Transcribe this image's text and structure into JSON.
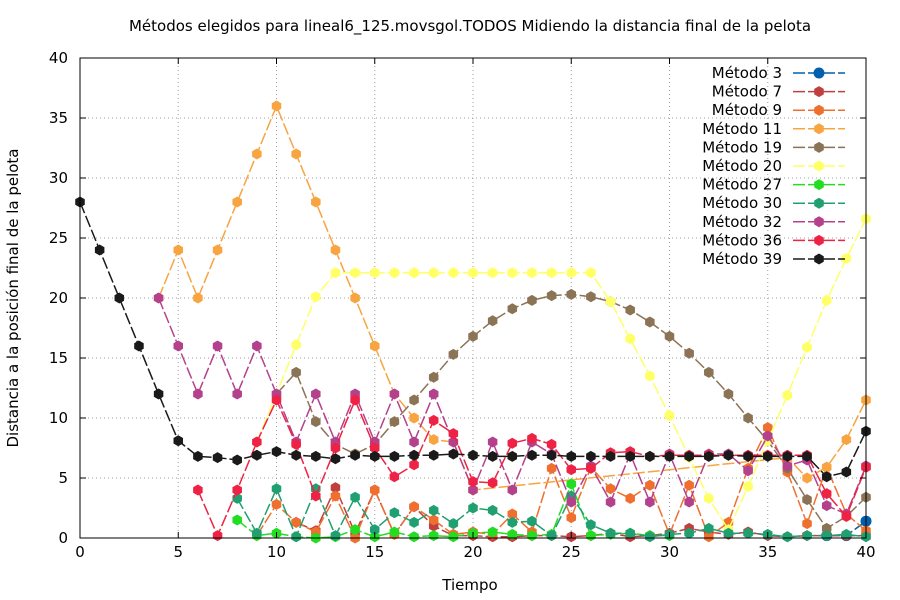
{
  "chart_data": {
    "type": "line",
    "title": "Métodos elegidos para lineal6_125.movsgol.TODOS Midiendo la distancia final de la pelota",
    "xlabel": "Tiempo",
    "ylabel": "Distancia a la posición final de la pelota",
    "xlim": [
      0,
      40
    ],
    "ylim": [
      0,
      40
    ],
    "xticks": [
      0,
      5,
      10,
      15,
      20,
      25,
      30,
      35,
      40
    ],
    "yticks": [
      0,
      5,
      10,
      15,
      20,
      25,
      30,
      35,
      40
    ],
    "grid": true,
    "legend_position": "top-right",
    "series": [
      {
        "name": "Método 3",
        "color": "#0060ad",
        "marker": "circle",
        "x": [
          38,
          39,
          40
        ],
        "y": [
          0.2,
          0.2,
          1.4
        ]
      },
      {
        "name": "Método 7",
        "color": "#c04040",
        "marker": "hexagon",
        "x": [
          11,
          12,
          13,
          14,
          15,
          16,
          17,
          18,
          19,
          20,
          21,
          22,
          23,
          24,
          25,
          26,
          27,
          28,
          29,
          30,
          31,
          32,
          33,
          34,
          35,
          36,
          37,
          38,
          39,
          40
        ],
        "y": [
          1.3,
          0.6,
          4.2,
          0.4,
          4.0,
          0.3,
          2.6,
          1.0,
          0.2,
          0.2,
          0.1,
          0.1,
          0.2,
          0.2,
          0.1,
          0.2,
          0.4,
          0.1,
          0.2,
          0.4,
          0.8,
          0.5,
          0.3,
          0.5,
          0.2,
          0.1,
          0.2,
          0.2,
          0.2,
          0.2
        ]
      },
      {
        "name": "Método 9",
        "color": "#ef6f2e",
        "marker": "hexagon",
        "x": [
          9,
          10,
          11,
          12,
          13,
          14,
          15,
          16,
          17,
          18,
          19,
          20,
          21,
          22,
          23,
          24,
          25,
          26,
          27,
          28,
          29,
          30,
          31,
          32,
          33,
          34,
          35,
          36,
          37,
          38,
          39,
          40
        ],
        "y": [
          0.2,
          2.8,
          1.3,
          0.5,
          3.5,
          0.0,
          4.0,
          0.3,
          2.6,
          1.5,
          0.3,
          0.5,
          0.3,
          2.0,
          0.5,
          5.8,
          1.7,
          5.9,
          4.1,
          3.3,
          4.4,
          0.3,
          4.4,
          0.1,
          1.3,
          5.8,
          9.2,
          5.5,
          1.2,
          5.9,
          2.0,
          0.6
        ]
      },
      {
        "name": "Método 11",
        "color": "#f7a441",
        "marker": "hexagon",
        "x": [
          4,
          5,
          6,
          7,
          8,
          9,
          10,
          11,
          12,
          13,
          14,
          15,
          16,
          17,
          18,
          19,
          20,
          36,
          37,
          38,
          39,
          40
        ],
        "y": [
          20.0,
          24.0,
          20.0,
          24.0,
          28.0,
          32.0,
          36.0,
          32.0,
          28.0,
          24.0,
          20.0,
          16.0,
          12.0,
          10.0,
          8.2,
          8.0,
          4.0,
          6.7,
          5.0,
          5.9,
          8.2,
          11.5
        ]
      },
      {
        "name": "Método 19",
        "color": "#8b7355",
        "marker": "hexagon",
        "x": [
          10,
          11,
          12,
          13,
          14,
          15,
          16,
          17,
          18,
          19,
          20,
          21,
          22,
          23,
          24,
          25,
          26,
          27,
          28,
          29,
          30,
          31,
          32,
          33,
          34,
          35,
          36,
          37,
          38,
          39,
          40
        ],
        "y": [
          12.0,
          13.8,
          9.7,
          7.8,
          7.0,
          7.8,
          9.7,
          11.5,
          13.4,
          15.3,
          16.8,
          18.1,
          19.1,
          19.8,
          20.2,
          20.3,
          20.1,
          19.7,
          19.0,
          18.0,
          16.8,
          15.4,
          13.8,
          12.0,
          10.0,
          8.1,
          5.8,
          3.2,
          0.8,
          1.8,
          3.4
        ]
      },
      {
        "name": "Método 20",
        "color": "#ffff66",
        "marker": "hexagon",
        "x": [
          9,
          10,
          11,
          12,
          13,
          14,
          15,
          16,
          17,
          18,
          19,
          20,
          21,
          22,
          23,
          24,
          25,
          26,
          27,
          28,
          29,
          30,
          31,
          32,
          33,
          34,
          35,
          36,
          37,
          38,
          39,
          40
        ],
        "y": [
          8.0,
          12.0,
          16.1,
          20.1,
          22.1,
          22.1,
          22.1,
          22.1,
          22.1,
          22.1,
          22.1,
          22.1,
          22.1,
          22.1,
          22.1,
          22.1,
          22.1,
          22.1,
          19.7,
          16.6,
          13.5,
          10.2,
          6.7,
          3.3,
          0.7,
          4.3,
          8.1,
          11.9,
          15.9,
          19.8,
          23.3,
          26.6
        ]
      },
      {
        "name": "Método 27",
        "color": "#22dd22",
        "marker": "hexagon",
        "x": [
          8,
          9,
          10,
          11,
          12,
          13,
          14,
          15,
          16,
          17,
          18,
          19,
          20,
          21,
          22,
          23,
          24,
          25,
          26,
          27,
          28,
          29,
          30
        ],
        "y": [
          1.5,
          0.2,
          0.4,
          0.1,
          0.0,
          0.1,
          0.7,
          0.1,
          0.5,
          0.1,
          0.2,
          0.1,
          0.4,
          0.5,
          0.3,
          0.2,
          0.3,
          4.5,
          0.2,
          0.3,
          0.4,
          0.2,
          0.2
        ]
      },
      {
        "name": "Método 30",
        "color": "#20a070",
        "marker": "hexagon",
        "x": [
          8,
          9,
          10,
          11,
          12,
          13,
          14,
          15,
          16,
          17,
          18,
          19,
          20,
          21,
          22,
          23,
          24,
          25,
          26,
          27,
          28,
          29,
          30,
          31,
          32,
          33,
          34,
          35,
          36,
          37,
          38,
          39,
          40
        ],
        "y": [
          3.3,
          0.4,
          4.1,
          0.1,
          4.1,
          0.2,
          3.4,
          0.7,
          2.1,
          1.3,
          2.3,
          1.2,
          2.5,
          2.3,
          1.3,
          1.4,
          0.2,
          3.5,
          1.1,
          0.4,
          0.4,
          0.1,
          0.3,
          0.4,
          0.8,
          0.4,
          0.4,
          0.3,
          0.1,
          0.2,
          0.2,
          0.3,
          0.1
        ]
      },
      {
        "name": "Método 32",
        "color": "#b4418c",
        "marker": "hexagon",
        "x": [
          4,
          5,
          6,
          7,
          8,
          9,
          10,
          11,
          12,
          13,
          14,
          15,
          16,
          17,
          18,
          19,
          20,
          21,
          22,
          23,
          24,
          25,
          26,
          27,
          28,
          29,
          30,
          31,
          32,
          33,
          34,
          35,
          36,
          37,
          38,
          39,
          40
        ],
        "y": [
          20.0,
          16.0,
          12.0,
          16.0,
          12.0,
          16.0,
          12.0,
          8.0,
          12.0,
          8.0,
          12.0,
          8.0,
          12.0,
          8.0,
          12.0,
          8.0,
          4.0,
          8.0,
          4.0,
          8.0,
          7.0,
          3.0,
          6.0,
          3.0,
          7.0,
          3.0,
          7.0,
          3.0,
          7.0,
          7.0,
          5.6,
          8.5,
          6.0,
          6.5,
          2.7,
          2.0,
          6.0
        ]
      },
      {
        "name": "Método 36",
        "color": "#ee2244",
        "marker": "hexagon",
        "x": [
          6,
          7,
          8,
          9,
          10,
          11,
          12,
          13,
          14,
          15,
          16,
          17,
          18,
          19,
          20,
          21,
          22,
          23,
          24,
          25,
          26,
          27,
          28,
          29,
          30,
          31,
          32,
          33,
          34,
          35,
          36,
          37,
          38,
          39,
          40
        ],
        "y": [
          4.0,
          0.2,
          4.0,
          8.0,
          11.5,
          7.8,
          3.5,
          7.5,
          11.5,
          7.5,
          5.1,
          6.1,
          9.8,
          8.7,
          4.7,
          4.6,
          7.9,
          8.3,
          7.8,
          5.7,
          5.8,
          7.1,
          7.2,
          6.8,
          6.9,
          6.9,
          6.9,
          6.9,
          6.9,
          6.9,
          6.9,
          6.9,
          3.7,
          1.8,
          5.9
        ]
      },
      {
        "name": "Método 39",
        "color": "#1a1a1a",
        "marker": "hexagon",
        "x": [
          0,
          1,
          2,
          3,
          4,
          5,
          6,
          7,
          8,
          9,
          10,
          11,
          12,
          13,
          14,
          15,
          16,
          17,
          18,
          19,
          20,
          21,
          22,
          23,
          24,
          25,
          26,
          27,
          28,
          29,
          30,
          31,
          32,
          33,
          34,
          35,
          36,
          37,
          38,
          39,
          40
        ],
        "y": [
          28.0,
          24.0,
          20.0,
          16.0,
          12.0,
          8.1,
          6.8,
          6.7,
          6.5,
          6.9,
          7.2,
          6.9,
          6.8,
          6.6,
          6.9,
          6.8,
          6.8,
          6.9,
          6.9,
          7.0,
          6.9,
          6.8,
          6.8,
          6.9,
          6.9,
          6.8,
          6.8,
          6.8,
          6.8,
          6.8,
          6.8,
          6.8,
          6.8,
          6.9,
          6.8,
          6.8,
          6.8,
          6.8,
          5.1,
          5.5,
          8.9
        ]
      }
    ]
  }
}
